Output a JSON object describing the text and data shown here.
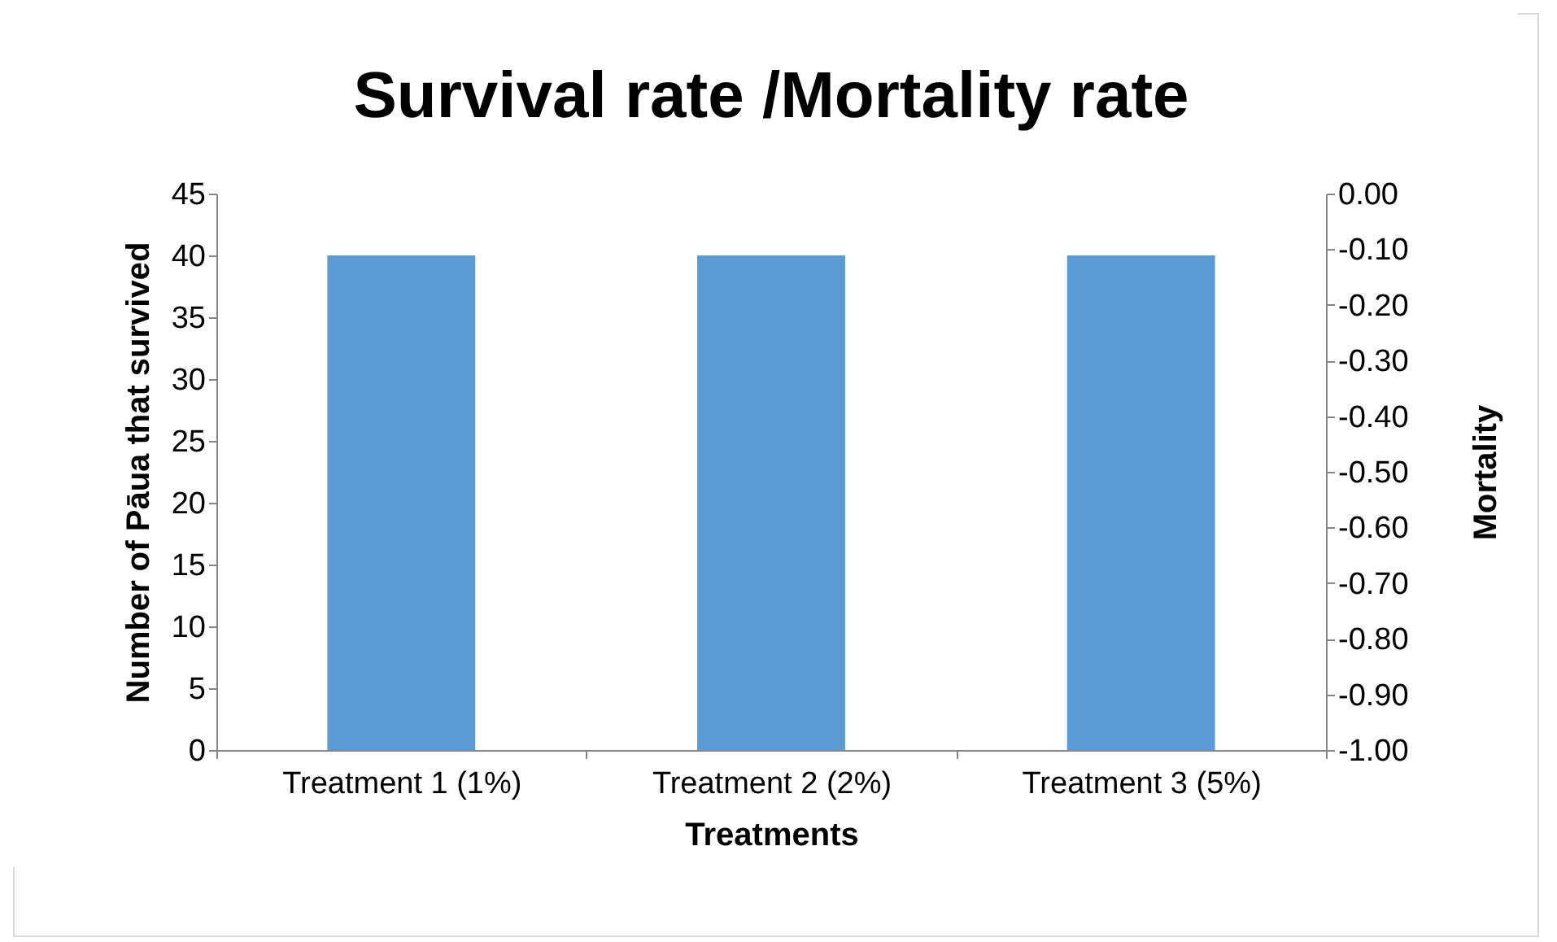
{
  "chart_data": {
    "type": "bar",
    "title": "Survival rate /Mortality rate",
    "xlabel": "Treatments",
    "ylabel": "Number of Pāua that survived",
    "y2label": "Mortality",
    "categories": [
      "Treatment 1 (1%)",
      "Treatment 2 (2%)",
      "Treatment 3 (5%)"
    ],
    "series": [
      {
        "color": "#5b9bd5",
        "values": [
          40,
          40,
          40
        ]
      }
    ],
    "ylim": [
      0,
      45
    ],
    "yticks": [
      0,
      5,
      10,
      15,
      20,
      25,
      30,
      35,
      40,
      45
    ],
    "y2lim": [
      -1,
      0
    ],
    "y2ticks": [
      {
        "value": 0,
        "label": "0.00"
      },
      {
        "value": -0.1,
        "label": "-0.10"
      },
      {
        "value": -0.2,
        "label": "-0.20"
      },
      {
        "value": -0.3,
        "label": "-0.30"
      },
      {
        "value": -0.4,
        "label": "-0.40"
      },
      {
        "value": -0.5,
        "label": "-0.50"
      },
      {
        "value": -0.6,
        "label": "-0.60"
      },
      {
        "value": -0.7,
        "label": "-0.70"
      },
      {
        "value": -0.8,
        "label": "-0.80"
      },
      {
        "value": -0.9,
        "label": "-0.90"
      },
      {
        "value": -1,
        "label": "-1.00"
      }
    ],
    "grid": false
  }
}
